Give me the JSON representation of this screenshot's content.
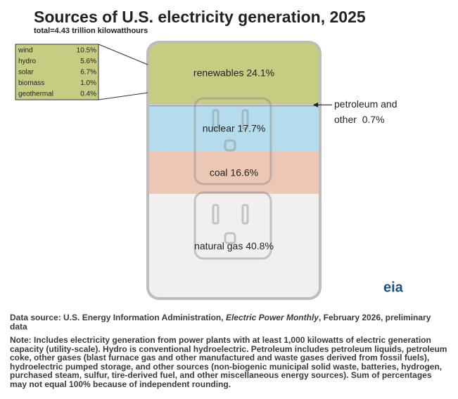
{
  "chart_data": {
    "type": "stacked-column",
    "title": "Sources of U.S. electricity generation, 2025",
    "subtitle": "total=4.43 trillion kilowatthours",
    "values": [
      40.8,
      16.6,
      17.7,
      0.7,
      24.1
    ],
    "value_labels": [
      "natural gas 40.8%",
      "coal 16.6%",
      "nuclear 17.7%",
      "petroleum and other  0.7%",
      "renewables 24.1%"
    ],
    "colors": [
      "#f2f0ef",
      "#ecc7b6",
      "#b4dcec",
      "#f8f8f8",
      "#c6cd83"
    ],
    "breakdown": {
      "categories": [
        "wind",
        "hydro",
        "solar",
        "biomass",
        "geothermal"
      ],
      "values": [
        10.5,
        5.6,
        6.7,
        1.0,
        0.4
      ],
      "value_labels": [
        "10.5%",
        "5.6%",
        "6.7%",
        "1.0%",
        "0.4%"
      ],
      "color": "#c6cd83"
    },
    "logo": "eia",
    "source": {
      "prefix": "Data source: U.S. Energy Information Administration, ",
      "publication": "Electric Power Monthly",
      "suffix": ", February 2026, preliminary data"
    },
    "note": "Note: Includes electricity generation from power plants with at least 1,000 kilowatts of electric generation capacity (utility-scale). Hydro is conventional hydroelectric. Petroleum includes petroleum liquids, petroleum coke, other gases (blast furnace gas and other manufactured and waste gases derived from fossil fuels), hydroelectric pumped storage, and other sources (non-biogenic municipal solid waste, batteries, hydrogen, purchased steam, sulfur, tire-derived fuel, and other miscellaneous energy sources). Sum of percentages may not equal 100% because of independent rounding."
  }
}
